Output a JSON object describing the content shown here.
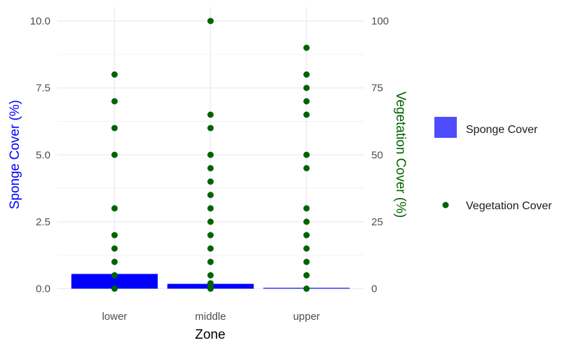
{
  "chart_data": {
    "type": "bar",
    "title": "",
    "xlabel": "Zone",
    "ylabel": "Sponge Cover (%)",
    "y2label": "Vegetation Cover (%)",
    "categories": [
      "lower",
      "middle",
      "upper"
    ],
    "ylim": [
      0,
      10
    ],
    "y2lim": [
      0,
      100
    ],
    "yticks": [
      "0.0",
      "2.5",
      "5.0",
      "7.5",
      "10.0"
    ],
    "y2ticks": [
      "0",
      "25",
      "50",
      "75",
      "100"
    ],
    "grid": true,
    "legend_position": "right",
    "series": [
      {
        "name": "Sponge Cover",
        "kind": "bar",
        "axis": "left",
        "color": "#0000ff",
        "legend_color": "#4d4dff",
        "values": [
          0.55,
          0.18,
          0.03
        ]
      },
      {
        "name": "Vegetation Cover",
        "kind": "scatter",
        "axis": "right",
        "color": "#006400",
        "points": {
          "lower": [
            0,
            5,
            10,
            15,
            20,
            30,
            50,
            60,
            70,
            80
          ],
          "middle": [
            0,
            1,
            2,
            5,
            10,
            15,
            20,
            25,
            30,
            35,
            40,
            45,
            50,
            60,
            65,
            100
          ],
          "upper": [
            0,
            5,
            10,
            15,
            20,
            25,
            30,
            45,
            50,
            65,
            70,
            75,
            80,
            90
          ]
        }
      }
    ],
    "colors": {
      "left_title": "#0000ff",
      "right_title": "#006400",
      "grid": "#ebebeb"
    }
  },
  "legend": {
    "items": [
      {
        "label": "Sponge Cover",
        "kind": "bar"
      },
      {
        "label": "Vegetation Cover",
        "kind": "point"
      }
    ]
  }
}
